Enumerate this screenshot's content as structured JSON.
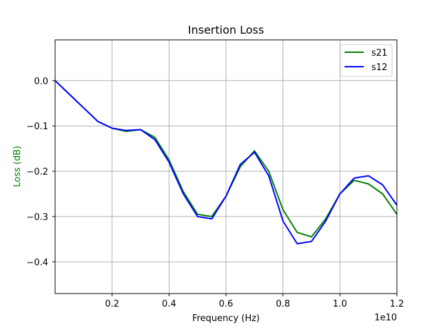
{
  "chart_data": {
    "type": "line",
    "title": "Insertion Loss",
    "xlabel": "Frequency (Hz)",
    "ylabel": "Loss (dB)",
    "ylabel_color": "#008000",
    "x_offset_text": "1e10",
    "xlim": [
      0.0,
      1.2
    ],
    "ylim": [
      -0.47,
      0.09
    ],
    "x_ticks": [
      0.2,
      0.4,
      0.6,
      0.8,
      1.0,
      1.2
    ],
    "x_tick_labels": [
      "0.2",
      "0.4",
      "0.6",
      "0.8",
      "1.0",
      "1.2"
    ],
    "y_ticks": [
      0.0,
      -0.1,
      -0.2,
      -0.3,
      -0.4
    ],
    "y_tick_labels": [
      "0.0",
      "−0.1",
      "−0.2",
      "−0.3",
      "−0.4"
    ],
    "grid": true,
    "legend_position": "top-right",
    "series": [
      {
        "name": "s21",
        "color": "#008000",
        "x": [
          0.0,
          0.05,
          0.1,
          0.15,
          0.2,
          0.25,
          0.3,
          0.35,
          0.4,
          0.45,
          0.5,
          0.55,
          0.6,
          0.65,
          0.7,
          0.75,
          0.8,
          0.85,
          0.9,
          0.95,
          1.0,
          1.05,
          1.1,
          1.15,
          1.2
        ],
        "values": [
          0.0,
          -0.03,
          -0.06,
          -0.09,
          -0.105,
          -0.112,
          -0.108,
          -0.125,
          -0.175,
          -0.245,
          -0.295,
          -0.3,
          -0.255,
          -0.19,
          -0.155,
          -0.2,
          -0.285,
          -0.335,
          -0.345,
          -0.305,
          -0.25,
          -0.22,
          -0.228,
          -0.25,
          -0.295
        ]
      },
      {
        "name": "s12",
        "color": "#0000ff",
        "x": [
          0.0,
          0.05,
          0.1,
          0.15,
          0.2,
          0.25,
          0.3,
          0.35,
          0.4,
          0.45,
          0.5,
          0.55,
          0.6,
          0.65,
          0.7,
          0.75,
          0.8,
          0.85,
          0.9,
          0.95,
          1.0,
          1.05,
          1.1,
          1.15,
          1.2
        ],
        "values": [
          0.0,
          -0.03,
          -0.06,
          -0.09,
          -0.105,
          -0.11,
          -0.108,
          -0.13,
          -0.18,
          -0.25,
          -0.3,
          -0.305,
          -0.255,
          -0.185,
          -0.158,
          -0.21,
          -0.31,
          -0.36,
          -0.355,
          -0.31,
          -0.25,
          -0.215,
          -0.21,
          -0.23,
          -0.275
        ]
      }
    ]
  }
}
